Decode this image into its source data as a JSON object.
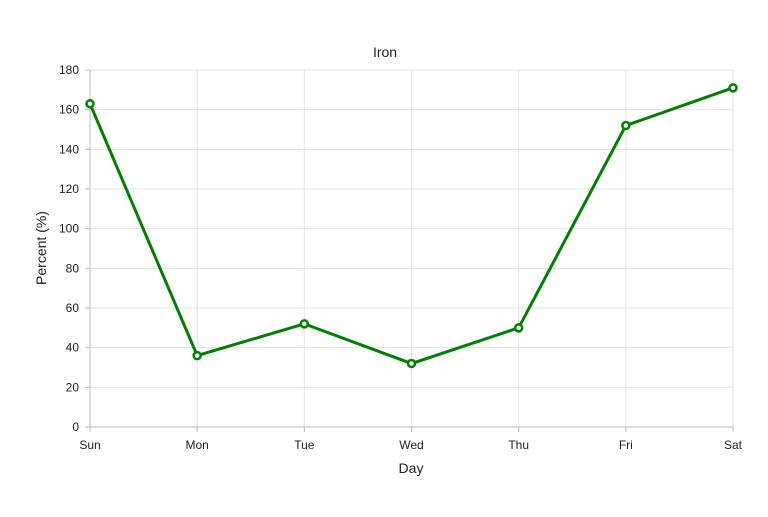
{
  "chart_data": {
    "type": "line",
    "title": "Iron",
    "xlabel": "Day",
    "ylabel": "Percent (%)",
    "categories": [
      "Sun",
      "Mon",
      "Tue",
      "Wed",
      "Thu",
      "Fri",
      "Sat"
    ],
    "series": [
      {
        "values": [
          163,
          36,
          52,
          32,
          50,
          152,
          171
        ],
        "color": "#008000"
      }
    ],
    "ylim": [
      0,
      180
    ],
    "yticks": [
      0,
      20,
      40,
      60,
      80,
      100,
      120,
      140,
      160,
      180
    ],
    "grid": true,
    "legend": "none"
  }
}
